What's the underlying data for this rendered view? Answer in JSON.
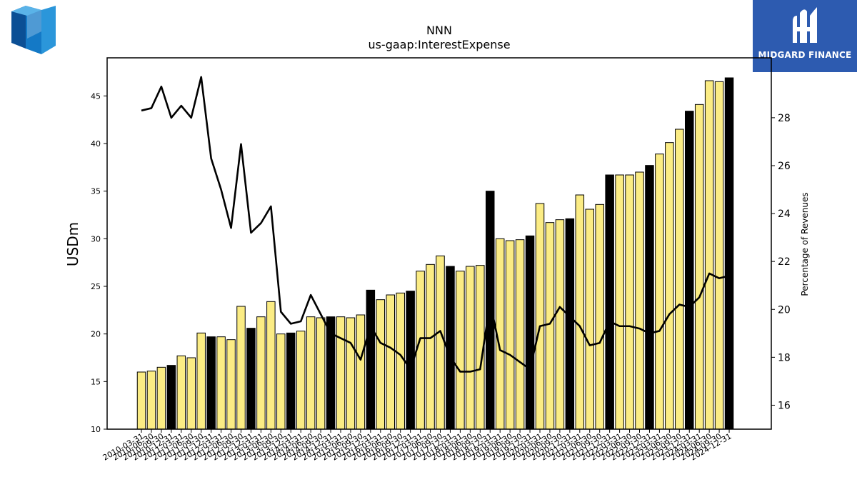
{
  "logos": {
    "right_text": "MIDGARD FINANCE"
  },
  "chart_data": {
    "type": "bar",
    "title": "NNN",
    "subtitle": "us-gaap:InterestExpense",
    "ylabel": "USDm",
    "y2label": "Percentage of Revenues",
    "ylim": [
      10,
      49
    ],
    "y2lim": [
      15,
      30.5
    ],
    "yticks": [
      10,
      15,
      20,
      25,
      30,
      35,
      40,
      45
    ],
    "y2ticks": [
      16,
      18,
      20,
      22,
      24,
      26,
      28
    ],
    "categories": [
      "2010-03-31",
      "2010-06-30",
      "2010-09-30",
      "2010-12-31",
      "2011-03-31",
      "2011-06-30",
      "2011-09-30",
      "2011-12-31",
      "2012-03-31",
      "2012-06-30",
      "2012-09-30",
      "2012-12-31",
      "2013-03-31",
      "2013-06-30",
      "2013-09-30",
      "2013-12-31",
      "2014-03-31",
      "2014-06-30",
      "2014-09-30",
      "2014-12-31",
      "2015-03-31",
      "2015-06-30",
      "2015-09-30",
      "2015-12-31",
      "2016-03-31",
      "2016-06-30",
      "2016-09-30",
      "2016-12-31",
      "2017-03-31",
      "2017-06-30",
      "2017-09-30",
      "2017-12-31",
      "2018-03-31",
      "2018-06-30",
      "2018-09-30",
      "2018-12-31",
      "2019-03-31",
      "2019-06-30",
      "2019-09-30",
      "2019-12-31",
      "2020-03-31",
      "2020-06-30",
      "2020-09-30",
      "2020-12-31",
      "2021-03-31",
      "2021-06-30",
      "2021-09-30",
      "2021-12-31",
      "2022-03-31",
      "2022-06-30",
      "2022-09-30",
      "2022-12-31",
      "2023-03-31",
      "2023-06-30",
      "2023-09-30",
      "2023-12-31",
      "2024-03-31",
      "2024-06-30",
      "2024-09-30",
      "2024-12-31"
    ],
    "series": [
      {
        "values": [
          16.0,
          16.1,
          16.5,
          16.7,
          17.7,
          17.5,
          20.1,
          19.7,
          19.7,
          19.4,
          22.9,
          20.6,
          21.8,
          23.4,
          20.0,
          20.1,
          20.3,
          21.8,
          21.7,
          21.8,
          21.8,
          21.7,
          22.0,
          24.6,
          23.6,
          24.1,
          24.3,
          24.5,
          26.6,
          27.3,
          28.2,
          27.1,
          26.6,
          27.1,
          27.2,
          35.0,
          30.0,
          29.8,
          29.9,
          30.3,
          33.7,
          31.7,
          32.0,
          32.1,
          34.6,
          33.1,
          33.6,
          36.7,
          36.7,
          36.7,
          37.0,
          37.7,
          38.9,
          40.1,
          41.5,
          43.4,
          44.1,
          46.6,
          46.5,
          46.9
        ],
        "q4_highlight": true
      },
      {
        "name": "Percentage of Revenues",
        "values": [
          28.3,
          28.4,
          29.3,
          28.0,
          28.5,
          28.0,
          29.7,
          26.3,
          25.0,
          23.4,
          26.9,
          23.2,
          23.6,
          24.3,
          19.9,
          19.4,
          19.5,
          20.6,
          19.8,
          19.0,
          18.8,
          18.6,
          17.9,
          19.3,
          18.6,
          18.4,
          18.1,
          17.5,
          18.8,
          18.8,
          19.1,
          18.0,
          17.4,
          17.4,
          17.5,
          20.3,
          18.3,
          18.1,
          17.8,
          17.5,
          19.3,
          19.4,
          20.1,
          19.7,
          19.3,
          18.5,
          18.6,
          19.5,
          19.3,
          19.3,
          19.2,
          19.0,
          19.1,
          19.8,
          20.2,
          20.1,
          20.5,
          21.5,
          21.3,
          21.4
        ]
      }
    ],
    "colors": {
      "bar": "#fbec84",
      "bar_q4": "#000000",
      "line": "#000000",
      "axis": "#000000"
    },
    "legend": "none",
    "grid": false
  }
}
